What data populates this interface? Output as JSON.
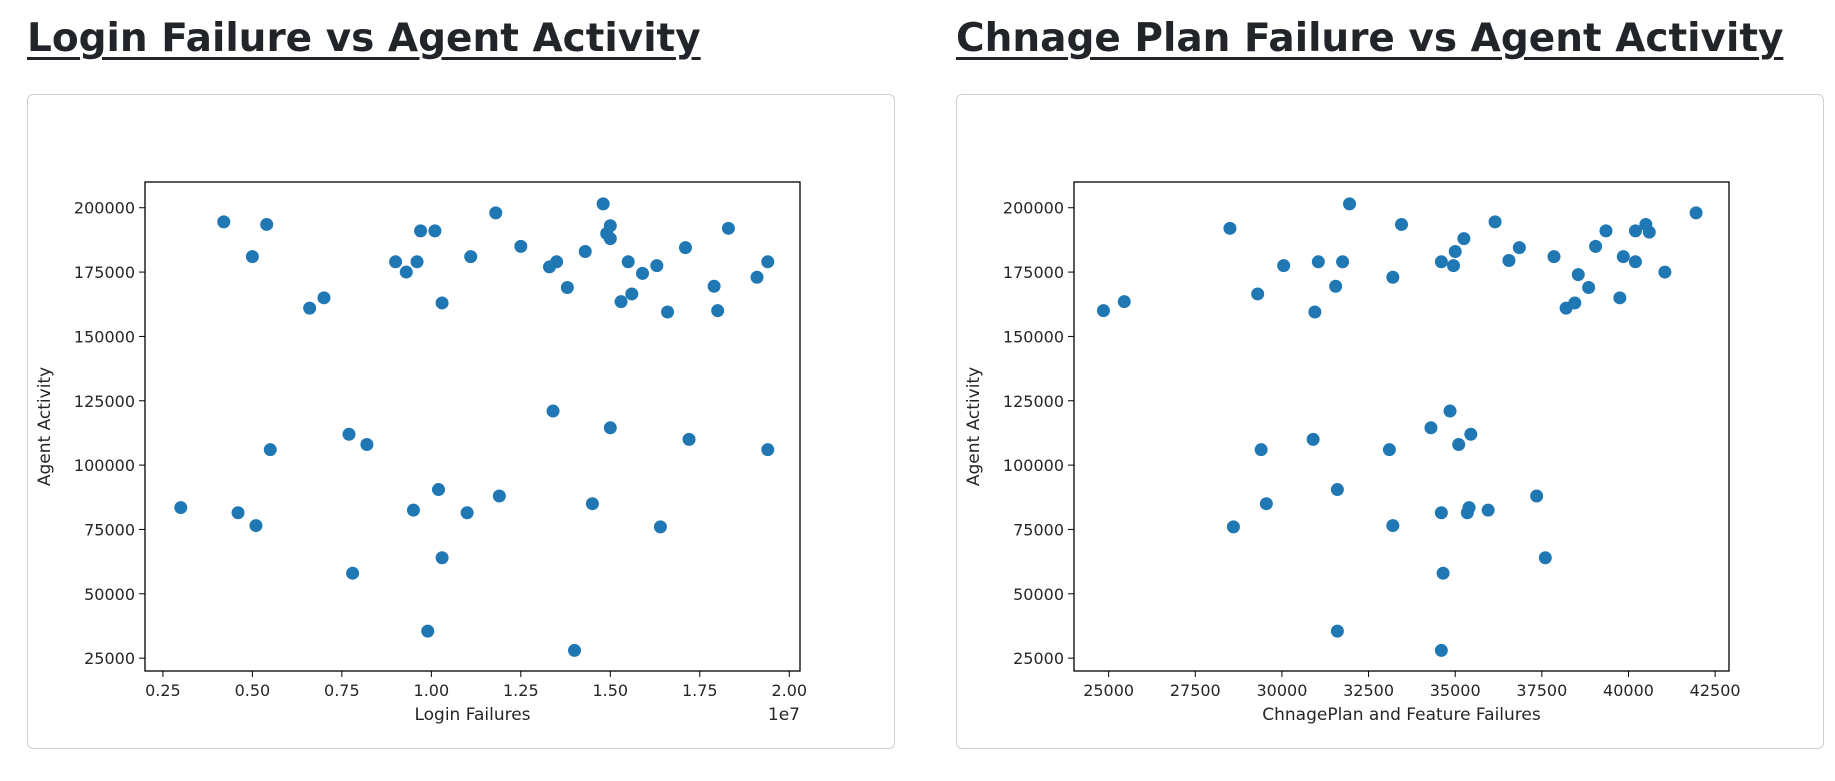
{
  "charts": [
    {
      "title": "Login Failure vs Agent Activity",
      "chart_data": {
        "type": "scatter",
        "title": "",
        "xlabel": "Login Failures",
        "ylabel": "Agent Activity",
        "x_offset_label": "1e7",
        "xlim": [
          0.2,
          2.03
        ],
        "ylim": [
          20000,
          210000
        ],
        "x_ticks": [
          0.25,
          0.5,
          0.75,
          1.0,
          1.25,
          1.5,
          1.75,
          2.0
        ],
        "x_tick_labels": [
          "0.25",
          "0.50",
          "0.75",
          "1.00",
          "1.25",
          "1.50",
          "1.75",
          "2.00"
        ],
        "y_ticks": [
          25000,
          50000,
          75000,
          100000,
          125000,
          150000,
          175000,
          200000
        ],
        "y_tick_labels": [
          "25000",
          "50000",
          "75000",
          "100000",
          "125000",
          "150000",
          "175000",
          "200000"
        ],
        "grid": false,
        "color": "#1f77b4",
        "points": [
          [
            0.3,
            83500
          ],
          [
            0.42,
            194500
          ],
          [
            0.46,
            81500
          ],
          [
            0.5,
            181000
          ],
          [
            0.51,
            76500
          ],
          [
            0.54,
            193500
          ],
          [
            0.55,
            106000
          ],
          [
            0.66,
            161000
          ],
          [
            0.7,
            165000
          ],
          [
            0.77,
            112000
          ],
          [
            0.78,
            58000
          ],
          [
            0.82,
            108000
          ],
          [
            0.9,
            179000
          ],
          [
            0.93,
            175000
          ],
          [
            0.95,
            82500
          ],
          [
            0.96,
            179000
          ],
          [
            0.97,
            191000
          ],
          [
            0.99,
            35500
          ],
          [
            1.01,
            191000
          ],
          [
            1.02,
            90500
          ],
          [
            1.03,
            163000
          ],
          [
            1.03,
            64000
          ],
          [
            1.1,
            81500
          ],
          [
            1.11,
            181000
          ],
          [
            1.18,
            198000
          ],
          [
            1.19,
            88000
          ],
          [
            1.25,
            185000
          ],
          [
            1.33,
            177000
          ],
          [
            1.34,
            121000
          ],
          [
            1.35,
            179000
          ],
          [
            1.38,
            169000
          ],
          [
            1.4,
            28000
          ],
          [
            1.43,
            183000
          ],
          [
            1.45,
            85000
          ],
          [
            1.48,
            201500
          ],
          [
            1.49,
            190000
          ],
          [
            1.5,
            188000
          ],
          [
            1.5,
            193000
          ],
          [
            1.5,
            114500
          ],
          [
            1.53,
            163500
          ],
          [
            1.55,
            179000
          ],
          [
            1.56,
            166500
          ],
          [
            1.59,
            174500
          ],
          [
            1.63,
            177500
          ],
          [
            1.64,
            76000
          ],
          [
            1.66,
            159500
          ],
          [
            1.71,
            184500
          ],
          [
            1.72,
            110000
          ],
          [
            1.79,
            169500
          ],
          [
            1.8,
            160000
          ],
          [
            1.83,
            192000
          ],
          [
            1.91,
            173000
          ],
          [
            1.94,
            179000
          ],
          [
            1.94,
            106000
          ]
        ]
      }
    },
    {
      "title": "Chnage Plan Failure vs Agent Activity",
      "chart_data": {
        "type": "scatter",
        "title": "",
        "xlabel": "ChnagePlan and Feature Failures",
        "ylabel": "Agent Activity",
        "xlim": [
          24000,
          42900
        ],
        "ylim": [
          20000,
          210000
        ],
        "x_ticks": [
          25000,
          27500,
          30000,
          32500,
          35000,
          37500,
          40000,
          42500
        ],
        "x_tick_labels": [
          "25000",
          "27500",
          "30000",
          "32500",
          "35000",
          "37500",
          "40000",
          "42500"
        ],
        "y_ticks": [
          25000,
          50000,
          75000,
          100000,
          125000,
          150000,
          175000,
          200000
        ],
        "y_tick_labels": [
          "25000",
          "50000",
          "75000",
          "100000",
          "125000",
          "150000",
          "175000",
          "200000"
        ],
        "grid": false,
        "color": "#1f77b4",
        "points": [
          [
            24850,
            160000
          ],
          [
            25450,
            163500
          ],
          [
            28500,
            192000
          ],
          [
            28600,
            76000
          ],
          [
            29300,
            166500
          ],
          [
            29400,
            106000
          ],
          [
            29550,
            85000
          ],
          [
            30050,
            177500
          ],
          [
            30900,
            110000
          ],
          [
            30950,
            159500
          ],
          [
            31050,
            179000
          ],
          [
            31550,
            169500
          ],
          [
            31600,
            90500
          ],
          [
            31600,
            35500
          ],
          [
            31750,
            179000
          ],
          [
            31950,
            201500
          ],
          [
            33100,
            106000
          ],
          [
            33200,
            76500
          ],
          [
            33200,
            173000
          ],
          [
            33450,
            193500
          ],
          [
            34300,
            114500
          ],
          [
            34600,
            179000
          ],
          [
            34650,
            58000
          ],
          [
            34600,
            81500
          ],
          [
            34600,
            28000
          ],
          [
            34850,
            121000
          ],
          [
            34950,
            177500
          ],
          [
            35000,
            183000
          ],
          [
            35100,
            108000
          ],
          [
            35250,
            188000
          ],
          [
            35350,
            81500
          ],
          [
            35400,
            83500
          ],
          [
            35450,
            112000
          ],
          [
            35950,
            82500
          ],
          [
            36150,
            194500
          ],
          [
            36550,
            179500
          ],
          [
            36850,
            184500
          ],
          [
            37350,
            88000
          ],
          [
            37600,
            64000
          ],
          [
            37850,
            181000
          ],
          [
            38200,
            161000
          ],
          [
            38450,
            163000
          ],
          [
            38550,
            174000
          ],
          [
            38850,
            169000
          ],
          [
            39050,
            185000
          ],
          [
            39350,
            191000
          ],
          [
            39750,
            165000
          ],
          [
            39850,
            181000
          ],
          [
            40200,
            179000
          ],
          [
            40200,
            191000
          ],
          [
            40500,
            193500
          ],
          [
            40600,
            190500
          ],
          [
            41050,
            175000
          ],
          [
            41950,
            198000
          ]
        ]
      }
    }
  ]
}
